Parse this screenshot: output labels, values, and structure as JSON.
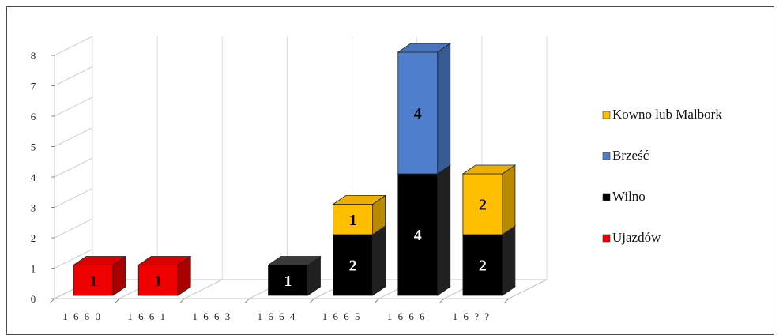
{
  "chart_data": {
    "type": "bar",
    "stacked": true,
    "three_d": true,
    "categories": [
      "1660",
      "1661",
      "1663",
      "1664",
      "1665",
      "1666",
      "16??"
    ],
    "category_labels": [
      "1 6 6 0",
      "1 6 6 1",
      "1 6 6 3",
      "1 6 6 4",
      "1 6 6 5",
      "1 6 6 6",
      "1 6 ? ?"
    ],
    "series": [
      {
        "name": "Ujazdów",
        "color": "#ee0000",
        "values": [
          1,
          1,
          0,
          0,
          0,
          0,
          0
        ]
      },
      {
        "name": "Wilno",
        "color": "#000000",
        "values": [
          0,
          0,
          0,
          1,
          2,
          4,
          2
        ]
      },
      {
        "name": "Brześć",
        "color": "#4f7fcc",
        "values": [
          0,
          0,
          0,
          0,
          0,
          4,
          0
        ]
      },
      {
        "name": "Kowno lub Malbork",
        "color": "#ffbf00",
        "values": [
          0,
          0,
          0,
          0,
          1,
          0,
          2
        ]
      }
    ],
    "legend_order": [
      "Kowno lub Malbork",
      "Brześć",
      "Wilno",
      "Ujazdów"
    ],
    "ylim": [
      0,
      8
    ],
    "yticks": [
      "0",
      "1",
      "2",
      "3",
      "4",
      "5",
      "6",
      "7",
      "8"
    ],
    "grid": true,
    "legend_position": "right",
    "title": "",
    "xlabel": "",
    "ylabel": ""
  }
}
